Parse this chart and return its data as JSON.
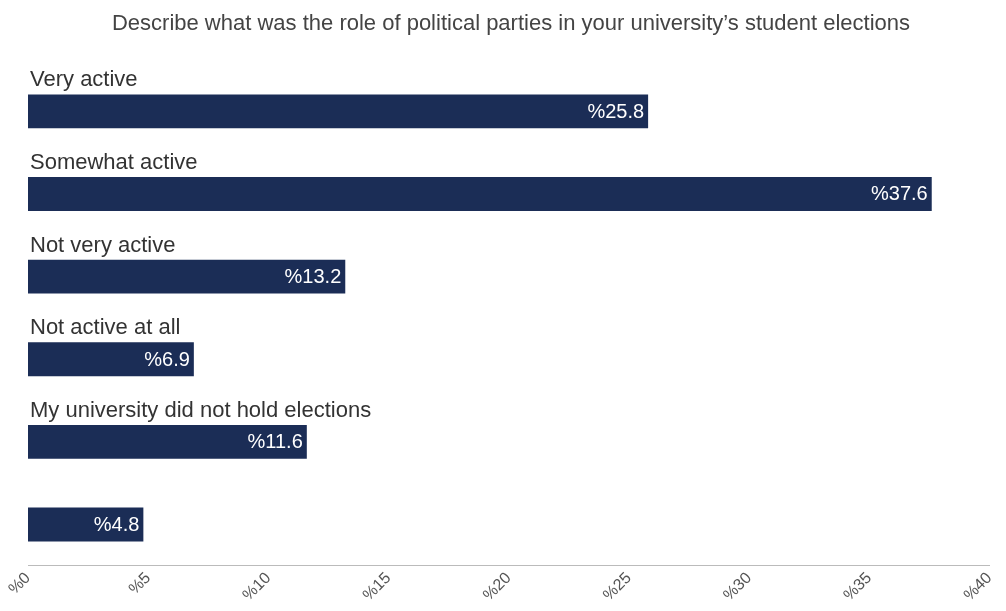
{
  "chart_data": {
    "type": "bar",
    "orientation": "horizontal",
    "title": "Describe what was the role of political parties in your university’s student elections",
    "categories": [
      "Very active",
      "Somewhat active",
      "Not very active",
      "Not active at all",
      "My university did not hold elections",
      null
    ],
    "values": [
      25.8,
      37.6,
      13.2,
      6.9,
      11.6,
      4.8
    ],
    "value_labels": [
      "%25.8",
      "%37.6",
      "%13.2",
      "%6.9",
      "%11.6",
      "%4.8"
    ],
    "color": "#1b2d56",
    "xlim": [
      0,
      40
    ],
    "xticks": [
      {
        "value": 0,
        "label": "%0"
      },
      {
        "value": 5,
        "label": "%5"
      },
      {
        "value": 10,
        "label": "%10"
      },
      {
        "value": 15,
        "label": "%15"
      },
      {
        "value": 20,
        "label": "%20"
      },
      {
        "value": 25,
        "label": "%25"
      },
      {
        "value": 30,
        "label": "%30"
      },
      {
        "value": 35,
        "label": "%35"
      },
      {
        "value": 40,
        "label": "%40"
      }
    ],
    "grid": false,
    "legend": false
  }
}
